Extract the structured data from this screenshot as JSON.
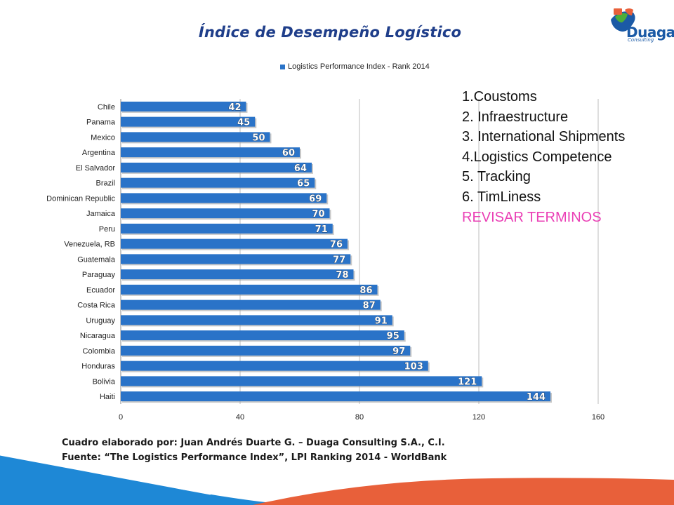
{
  "title": "Índice de Desempeño Logístico",
  "logo": {
    "name": "Duaga",
    "subtitle": "Consulting",
    "icon": "duaga-logo-icon"
  },
  "chart_data": {
    "type": "bar",
    "orientation": "horizontal",
    "legend": "top",
    "grid": true,
    "series": [
      {
        "name": "Logistics Performance Index - Rank 2014",
        "color": "#2a73c8",
        "values": [
          42,
          45,
          50,
          60,
          64,
          65,
          69,
          70,
          71,
          76,
          77,
          78,
          86,
          87,
          91,
          95,
          97,
          103,
          121,
          144
        ]
      }
    ],
    "categories": [
      "Chile",
      "Panama",
      "Mexico",
      "Argentina",
      "El Salvador",
      "Brazil",
      "Dominican Republic",
      "Jamaica",
      "Peru",
      "Venezuela, RB",
      "Guatemala",
      "Paraguay",
      "Ecuador",
      "Costa Rica",
      "Uruguay",
      "Nicaragua",
      "Colombia",
      "Honduras",
      "Bolivia",
      "Haiti"
    ],
    "xlim": [
      0,
      160
    ],
    "xticks": [
      0,
      40,
      80,
      120,
      160
    ]
  },
  "notes": {
    "items": [
      "1.Coustoms",
      "2. Infraestructure",
      "3. International Shipments",
      "4.Logistics Competence",
      "5. Tracking",
      "6. TimLiness"
    ],
    "warning": "REVISAR TERMINOS",
    "warning_color": "#ea3fb5"
  },
  "footer": {
    "line1": "Cuadro elaborado por: Juan Andrés Duarte  G. – Duaga Consulting S.A., C.I.",
    "line2": "Fuente: “The Logistics Performance Index”, LPI Ranking 2014 - WorldBank"
  },
  "colors": {
    "title": "#1f3e8a",
    "bar": "#2a73c8",
    "wave_blue": "#1e88d6",
    "wave_orange": "#e8603a"
  }
}
